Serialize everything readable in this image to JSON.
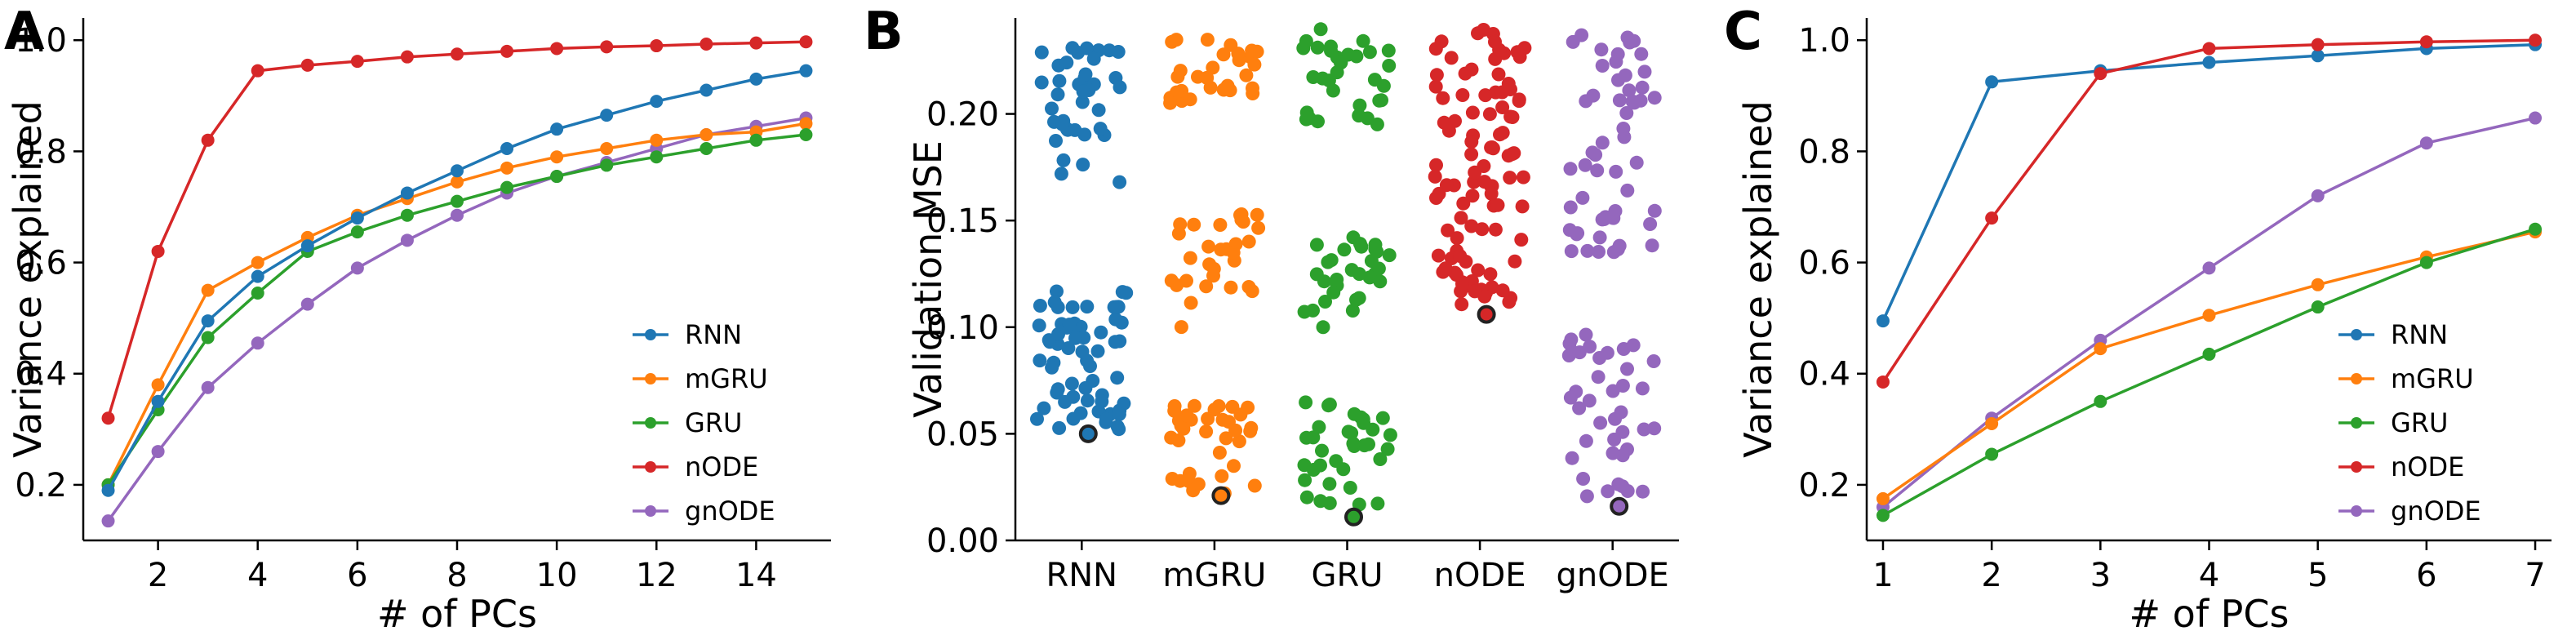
{
  "colors": {
    "RNN": "#1f77b4",
    "mGRU": "#ff7f0e",
    "GRU": "#2ca02c",
    "nODE": "#d62728",
    "gnODE": "#9467bd"
  },
  "panels": [
    {
      "letter": "A"
    },
    {
      "letter": "B"
    },
    {
      "letter": "C"
    }
  ],
  "chart_data": [
    {
      "type": "line",
      "panel": "A",
      "xlabel": "# of PCs",
      "ylabel": "Variance explained",
      "xlim": [
        0.5,
        15.5
      ],
      "ylim": [
        0.1,
        1.04
      ],
      "xticks": [
        2,
        4,
        6,
        8,
        10,
        12,
        14
      ],
      "yticks": [
        0.2,
        0.4,
        0.6,
        0.8,
        1.0
      ],
      "ytick_labels": [
        "0.2",
        "0.4",
        "0.6",
        "0.8",
        "1.0"
      ],
      "legend_position": "lower-right",
      "legend_order": [
        "RNN",
        "mGRU",
        "GRU",
        "nODE",
        "gnODE"
      ],
      "x": [
        1,
        2,
        3,
        4,
        5,
        6,
        7,
        8,
        9,
        10,
        11,
        12,
        13,
        14,
        15
      ],
      "series": [
        {
          "name": "gnODE",
          "values": [
            0.135,
            0.26,
            0.375,
            0.455,
            0.525,
            0.59,
            0.64,
            0.685,
            0.725,
            0.755,
            0.78,
            0.805,
            0.83,
            0.845,
            0.86
          ]
        },
        {
          "name": "mGRU",
          "values": [
            0.2,
            0.38,
            0.55,
            0.6,
            0.645,
            0.685,
            0.715,
            0.745,
            0.77,
            0.79,
            0.805,
            0.82,
            0.83,
            0.835,
            0.85
          ]
        },
        {
          "name": "GRU",
          "values": [
            0.2,
            0.335,
            0.465,
            0.545,
            0.62,
            0.655,
            0.685,
            0.71,
            0.735,
            0.755,
            0.775,
            0.79,
            0.805,
            0.82,
            0.83
          ]
        },
        {
          "name": "RNN",
          "values": [
            0.19,
            0.35,
            0.495,
            0.575,
            0.63,
            0.68,
            0.725,
            0.765,
            0.805,
            0.84,
            0.865,
            0.89,
            0.91,
            0.93,
            0.945
          ]
        },
        {
          "name": "nODE",
          "values": [
            0.32,
            0.62,
            0.82,
            0.945,
            0.955,
            0.962,
            0.97,
            0.975,
            0.98,
            0.985,
            0.988,
            0.99,
            0.993,
            0.995,
            0.997
          ]
        }
      ]
    },
    {
      "type": "scatter",
      "panel": "B",
      "xlabel": "",
      "ylabel": "Validation MSE",
      "ylim": [
        0.0,
        0.245
      ],
      "yticks": [
        0.0,
        0.05,
        0.1,
        0.15,
        0.2
      ],
      "ytick_labels": [
        "0.00",
        "0.05",
        "0.10",
        "0.15",
        "0.20"
      ],
      "categories": [
        "RNN",
        "mGRU",
        "GRU",
        "nODE",
        "gnODE"
      ],
      "series": [
        {
          "name": "RNN",
          "clusters": [
            {
              "min": 0.168,
              "max": 0.235,
              "n": 38
            },
            {
              "min": 0.052,
              "max": 0.117,
              "n": 62
            }
          ],
          "best": 0.05
        },
        {
          "name": "mGRU",
          "clusters": [
            {
              "min": 0.205,
              "max": 0.235,
              "n": 30
            },
            {
              "min": 0.1,
              "max": 0.155,
              "n": 30
            },
            {
              "min": 0.02,
              "max": 0.065,
              "n": 35
            }
          ],
          "best": 0.021
        },
        {
          "name": "GRU",
          "clusters": [
            {
              "min": 0.195,
              "max": 0.24,
              "n": 32
            },
            {
              "min": 0.098,
              "max": 0.145,
              "n": 30
            },
            {
              "min": 0.012,
              "max": 0.065,
              "n": 35
            }
          ],
          "best": 0.011
        },
        {
          "name": "nODE",
          "clusters": [
            {
              "min": 0.11,
              "max": 0.24,
              "n": 100
            }
          ],
          "best": 0.106
        },
        {
          "name": "gnODE",
          "clusters": [
            {
              "min": 0.135,
              "max": 0.24,
              "n": 55
            },
            {
              "min": 0.02,
              "max": 0.098,
              "n": 40
            }
          ],
          "best": 0.016
        }
      ]
    },
    {
      "type": "line",
      "panel": "C",
      "xlabel": "# of PCs",
      "ylabel": "Variance explained",
      "xlim": [
        0.85,
        7.15
      ],
      "ylim": [
        0.1,
        1.04
      ],
      "xticks": [
        1,
        2,
        3,
        4,
        5,
        6,
        7
      ],
      "yticks": [
        0.2,
        0.4,
        0.6,
        0.8,
        1.0
      ],
      "ytick_labels": [
        "0.2",
        "0.4",
        "0.6",
        "0.8",
        "1.0"
      ],
      "legend_position": "lower-right",
      "legend_order": [
        "RNN",
        "mGRU",
        "GRU",
        "nODE",
        "gnODE"
      ],
      "x": [
        1,
        2,
        3,
        4,
        5,
        6,
        7
      ],
      "series": [
        {
          "name": "gnODE",
          "values": [
            0.16,
            0.32,
            0.46,
            0.59,
            0.72,
            0.815,
            0.86
          ]
        },
        {
          "name": "mGRU",
          "values": [
            0.175,
            0.31,
            0.445,
            0.505,
            0.56,
            0.61,
            0.655
          ]
        },
        {
          "name": "GRU",
          "values": [
            0.145,
            0.255,
            0.35,
            0.435,
            0.52,
            0.6,
            0.66
          ]
        },
        {
          "name": "RNN",
          "values": [
            0.495,
            0.925,
            0.945,
            0.96,
            0.972,
            0.985,
            0.992
          ]
        },
        {
          "name": "nODE",
          "values": [
            0.385,
            0.68,
            0.94,
            0.985,
            0.992,
            0.997,
            1.0
          ]
        }
      ]
    }
  ]
}
